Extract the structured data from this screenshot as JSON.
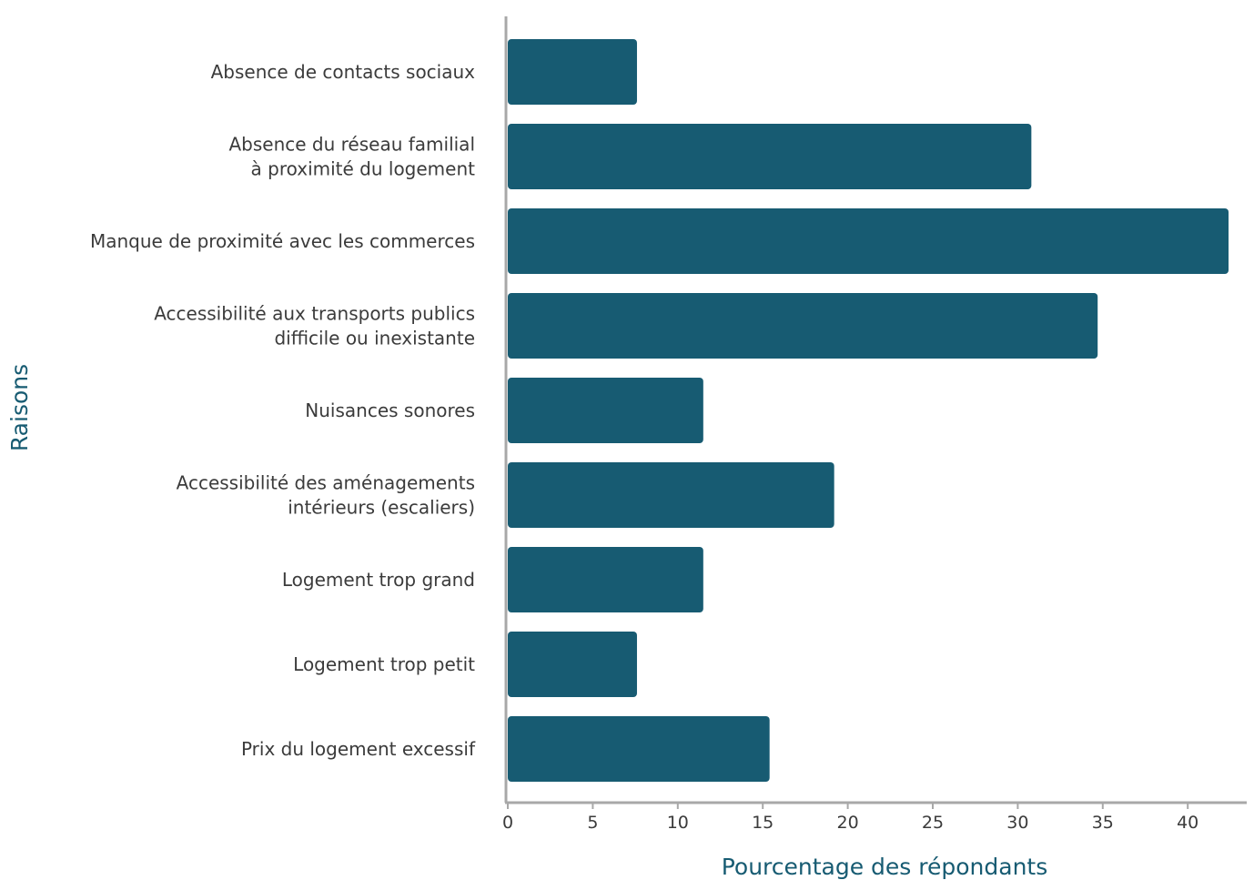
{
  "chart_data": {
    "type": "bar",
    "orientation": "horizontal",
    "categories": [
      [
        "Absence de contacts sociaux"
      ],
      [
        "Absence du réseau familial",
        "à proximité du logement"
      ],
      [
        "Manque de proximité avec les commerces"
      ],
      [
        "Accessibilité aux transports publics",
        "difficile ou inexistante"
      ],
      [
        "Nuisances sonores"
      ],
      [
        "Accessibilité des aménagements",
        "intérieurs (escaliers)"
      ],
      [
        "Logement trop grand"
      ],
      [
        "Logement trop petit"
      ],
      [
        "Prix du logement excessif"
      ]
    ],
    "values": [
      7.6,
      30.8,
      42.4,
      34.7,
      11.5,
      19.2,
      11.5,
      7.6,
      15.4
    ],
    "xlabel": "Pourcentage des répondants",
    "ylabel": "Raisons",
    "xlim": [
      0,
      44
    ],
    "xticks": [
      0,
      5,
      10,
      15,
      20,
      25,
      30,
      35,
      40
    ],
    "bar_color": "#175b72",
    "grid": false,
    "legend": "none"
  }
}
